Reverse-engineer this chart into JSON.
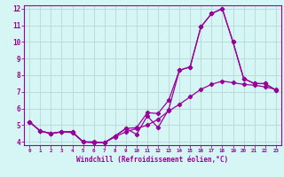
{
  "xlabel": "Windchill (Refroidissement éolien,°C)",
  "bg_color": "#d6f5f5",
  "grid_color": "#b8d8d8",
  "line_color": "#990099",
  "xlim": [
    -0.5,
    23.5
  ],
  "ylim": [
    3.8,
    12.2
  ],
  "xticks": [
    0,
    1,
    2,
    3,
    4,
    5,
    6,
    7,
    8,
    9,
    10,
    11,
    12,
    13,
    14,
    15,
    16,
    17,
    18,
    19,
    20,
    21,
    22,
    23
  ],
  "yticks": [
    4,
    5,
    6,
    7,
    8,
    9,
    10,
    11,
    12
  ],
  "line1_x": [
    0,
    1,
    2,
    3,
    4,
    5,
    6,
    7,
    8,
    9,
    10,
    11,
    12,
    13,
    14,
    15,
    16,
    17,
    18,
    19,
    20,
    21,
    22,
    23
  ],
  "line1_y": [
    5.2,
    4.65,
    4.5,
    4.6,
    4.6,
    4.0,
    3.95,
    3.95,
    4.35,
    4.8,
    4.85,
    5.75,
    5.7,
    6.5,
    8.3,
    8.5,
    10.9,
    11.7,
    12.0,
    10.0,
    7.8,
    7.5,
    7.5,
    7.1
  ],
  "line2_x": [
    0,
    1,
    2,
    3,
    4,
    5,
    6,
    7,
    8,
    9,
    10,
    11,
    12,
    13,
    14,
    15,
    16,
    17,
    18,
    19,
    20,
    21,
    22,
    23
  ],
  "line2_y": [
    5.2,
    4.65,
    4.5,
    4.6,
    4.6,
    4.0,
    3.95,
    3.95,
    4.35,
    4.8,
    4.45,
    5.55,
    4.85,
    5.95,
    8.3,
    8.5,
    10.9,
    11.7,
    12.0,
    10.0,
    7.8,
    7.5,
    7.5,
    7.1
  ],
  "line3_x": [
    0,
    1,
    2,
    3,
    4,
    5,
    6,
    7,
    8,
    9,
    10,
    11,
    12,
    13,
    14,
    15,
    16,
    17,
    18,
    19,
    20,
    21,
    22,
    23
  ],
  "line3_y": [
    5.2,
    4.65,
    4.5,
    4.6,
    4.55,
    4.0,
    4.0,
    3.95,
    4.3,
    4.6,
    4.8,
    5.0,
    5.35,
    5.85,
    6.25,
    6.7,
    7.15,
    7.45,
    7.65,
    7.55,
    7.45,
    7.4,
    7.3,
    7.15
  ]
}
